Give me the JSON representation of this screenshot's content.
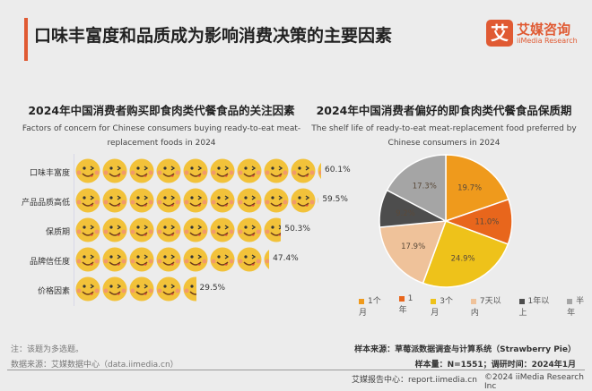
{
  "header": {
    "title": "口味丰富度和品质成为影响消费决策的主要因素",
    "logo_mark": "艾",
    "logo_cn": "艾媒咨询",
    "logo_en": "iiMedia Research"
  },
  "chart_data": [
    {
      "type": "bar",
      "style": "pictogram",
      "title": "2024年中国消费者购买即食肉类代餐食品的关注因素",
      "subtitle": "Factors of concern for Chinese consumers buying ready-to-eat meat-replacement foods in 2024",
      "categories": [
        "口味丰富度",
        "产品品质高低",
        "保质期",
        "品牌信任度",
        "价格因素"
      ],
      "values": [
        60.1,
        59.5,
        50.3,
        47.4,
        29.5
      ],
      "labels": [
        "60.1%",
        "59.5%",
        "50.3%",
        "47.4%",
        "29.5%"
      ],
      "icon": "smiley-face-icon",
      "color": "#f2c23a"
    },
    {
      "type": "pie",
      "title": "2024年中国消费者偏好的即食肉类代餐食品保质期",
      "subtitle": "The shelf life of ready-to-eat meat-replacement food preferred by Chinese consumers in 2024",
      "legend_position": "bottom",
      "slices": [
        {
          "name": "1个月",
          "value": 19.7,
          "label": "19.7%",
          "color": "#ef9a1c"
        },
        {
          "name": "1年",
          "value": 11.0,
          "label": "11.0%",
          "color": "#e8661c"
        },
        {
          "name": "3个月",
          "value": 24.9,
          "label": "24.9%",
          "color": "#eec21a"
        },
        {
          "name": "7天以内",
          "value": 17.9,
          "label": "17.9%",
          "color": "#efc29a"
        },
        {
          "name": "1年以上",
          "value": 9.2,
          "label": "9.2%",
          "color": "#4d4d4d"
        },
        {
          "name": "半年",
          "value": 17.3,
          "label": "17.3%",
          "color": "#a5a5a5"
        }
      ]
    }
  ],
  "footer": {
    "note": "注：该题为多选题。",
    "source": "数据来源：艾媒数据中心（data.iimedia.cn）",
    "sample_source": "样本来源：草莓派数据调查与计算系统（Strawberry Pie）",
    "sample_size": "样本量：N=1551；调研时间：2024年1月",
    "report_center": "艾媒报告中心：report.iimedia.cn",
    "copyright": "©2024  iiMedia Research  Inc"
  }
}
